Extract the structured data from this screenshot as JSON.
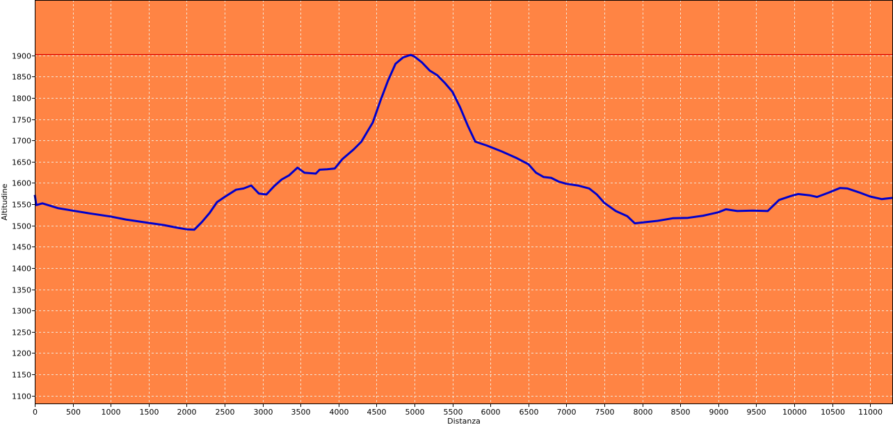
{
  "chart_data": {
    "type": "line",
    "title": "",
    "xlabel": "Distanza",
    "ylabel": "Altitudine",
    "xlim": [
      0,
      11300
    ],
    "ylim": [
      1080,
      2030
    ],
    "x_ticks": [
      0,
      500,
      1000,
      1500,
      2000,
      2500,
      3000,
      3500,
      4000,
      4500,
      5000,
      5500,
      6000,
      6500,
      7000,
      7500,
      8000,
      8500,
      9000,
      9500,
      10000,
      10500,
      11000
    ],
    "y_ticks": [
      1100,
      1150,
      1200,
      1250,
      1300,
      1350,
      1400,
      1450,
      1500,
      1550,
      1600,
      1650,
      1700,
      1750,
      1800,
      1850,
      1900
    ],
    "grid": true,
    "legend": "none",
    "max_line": 1903,
    "colors": {
      "plot_background": "#ff8444",
      "line": "#0000cc",
      "grid": "#f2e6d8",
      "max_line": "#dd0000"
    },
    "series": [
      {
        "values": [
          [
            0,
            1572
          ],
          [
            20,
            1548
          ],
          [
            100,
            1552
          ],
          [
            300,
            1541
          ],
          [
            500,
            1535
          ],
          [
            700,
            1529
          ],
          [
            1000,
            1521
          ],
          [
            1200,
            1514
          ],
          [
            1500,
            1506
          ],
          [
            1700,
            1501
          ],
          [
            1900,
            1494
          ],
          [
            2000,
            1491
          ],
          [
            2100,
            1490
          ],
          [
            2200,
            1508
          ],
          [
            2300,
            1529
          ],
          [
            2400,
            1555
          ],
          [
            2500,
            1567
          ],
          [
            2650,
            1584
          ],
          [
            2750,
            1587
          ],
          [
            2850,
            1594
          ],
          [
            2950,
            1575
          ],
          [
            3050,
            1573
          ],
          [
            3150,
            1592
          ],
          [
            3250,
            1608
          ],
          [
            3350,
            1618
          ],
          [
            3460,
            1636
          ],
          [
            3550,
            1624
          ],
          [
            3700,
            1622
          ],
          [
            3750,
            1631
          ],
          [
            3850,
            1632
          ],
          [
            3950,
            1634
          ],
          [
            4050,
            1656
          ],
          [
            4200,
            1679
          ],
          [
            4300,
            1697
          ],
          [
            4450,
            1742
          ],
          [
            4550,
            1793
          ],
          [
            4650,
            1840
          ],
          [
            4750,
            1880
          ],
          [
            4850,
            1895
          ],
          [
            4950,
            1901
          ],
          [
            5000,
            1897
          ],
          [
            5100,
            1883
          ],
          [
            5200,
            1864
          ],
          [
            5300,
            1853
          ],
          [
            5400,
            1835
          ],
          [
            5500,
            1814
          ],
          [
            5600,
            1778
          ],
          [
            5700,
            1735
          ],
          [
            5800,
            1697
          ],
          [
            5950,
            1688
          ],
          [
            6150,
            1674
          ],
          [
            6350,
            1658
          ],
          [
            6500,
            1644
          ],
          [
            6600,
            1624
          ],
          [
            6700,
            1614
          ],
          [
            6800,
            1612
          ],
          [
            6900,
            1603
          ],
          [
            7000,
            1598
          ],
          [
            7150,
            1594
          ],
          [
            7300,
            1587
          ],
          [
            7400,
            1573
          ],
          [
            7500,
            1553
          ],
          [
            7650,
            1534
          ],
          [
            7800,
            1522
          ],
          [
            7900,
            1505
          ],
          [
            8000,
            1507
          ],
          [
            8200,
            1511
          ],
          [
            8400,
            1517
          ],
          [
            8600,
            1518
          ],
          [
            8800,
            1523
          ],
          [
            9000,
            1531
          ],
          [
            9100,
            1538
          ],
          [
            9250,
            1534
          ],
          [
            9450,
            1535
          ],
          [
            9650,
            1534
          ],
          [
            9800,
            1560
          ],
          [
            9950,
            1569
          ],
          [
            10050,
            1574
          ],
          [
            10200,
            1571
          ],
          [
            10300,
            1567
          ],
          [
            10450,
            1577
          ],
          [
            10600,
            1588
          ],
          [
            10700,
            1587
          ],
          [
            10850,
            1578
          ],
          [
            11000,
            1568
          ],
          [
            11150,
            1562
          ],
          [
            11300,
            1565
          ]
        ]
      }
    ]
  }
}
